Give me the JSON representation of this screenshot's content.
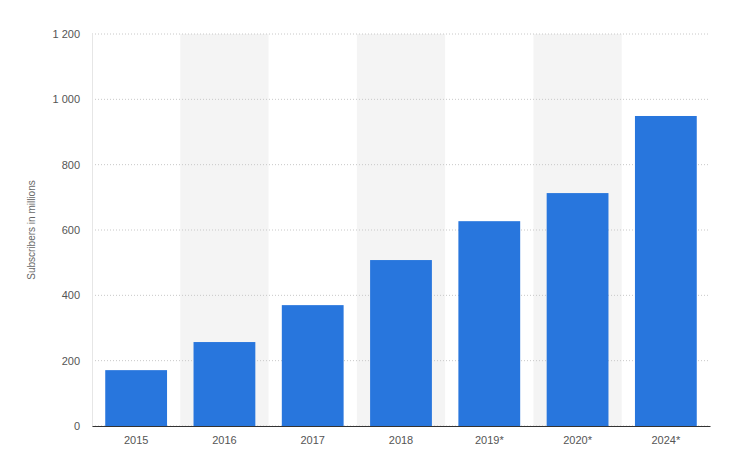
{
  "chart_data": {
    "type": "bar",
    "y_label": "Subscribers in millions",
    "categories": [
      "2015",
      "2016",
      "2017",
      "2018",
      "2019*",
      "2020*",
      "2024*"
    ],
    "values": [
      171,
      257,
      370,
      508,
      627,
      713,
      949
    ],
    "color": "#2876dd",
    "ylim": [
      0,
      1200
    ],
    "yticks": [
      0,
      200,
      400,
      600,
      800,
      {
        "value": 1000,
        "label": "1 000"
      },
      {
        "value": 1200,
        "label": "1 200"
      }
    ],
    "grid": true
  }
}
